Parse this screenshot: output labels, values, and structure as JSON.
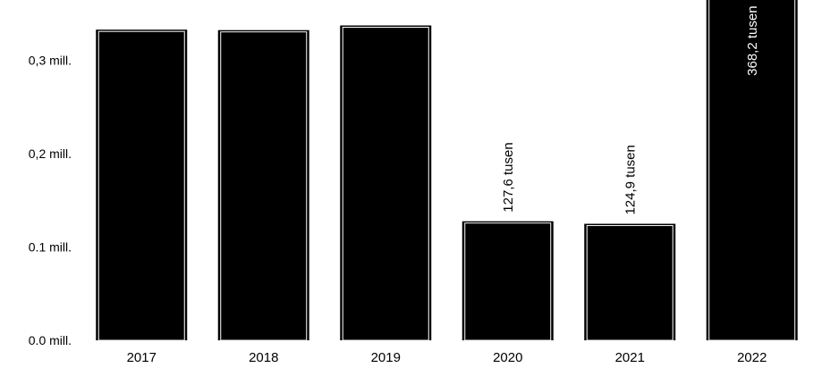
{
  "chart_data": {
    "type": "bar",
    "categories": [
      "2017",
      "2018",
      "2019",
      "2020",
      "2021",
      "2022"
    ],
    "values": [
      333.0,
      332.5,
      337.5,
      127.6,
      124.9,
      368.2
    ],
    "data_labels": [
      "",
      "",
      "",
      "127,6 tusen",
      "124,9 tusen",
      "368,2 tusen"
    ],
    "ylim": [
      0,
      0.36
    ],
    "yticks": [
      0,
      0.1,
      0.2,
      0.3
    ],
    "ytick_labels": [
      "0.0 mill.",
      "0.1 mill.",
      "0,2 mill.",
      "0,3 mill."
    ],
    "title": "",
    "xlabel": "",
    "ylabel": "",
    "grid": false,
    "bar_color": "#000000",
    "label_color_inside": "#ffffff",
    "label_color_outside": "#000000"
  }
}
